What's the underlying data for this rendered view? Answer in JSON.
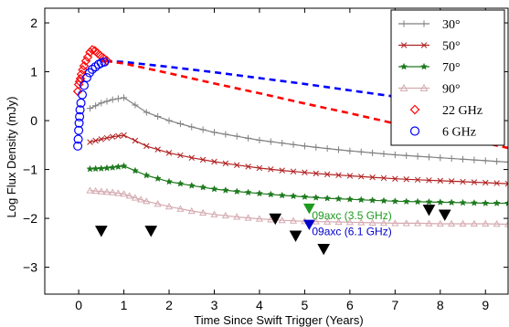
{
  "chart_data": {
    "type": "line",
    "title": "",
    "xlabel": "Time Since Swift Trigger (Years)",
    "ylabel": "Log Flux Density (mJy)",
    "xlim": [
      -0.75,
      9.5
    ],
    "ylim": [
      -3.55,
      2.3
    ],
    "xticks": [
      0,
      1,
      2,
      3,
      4,
      5,
      6,
      7,
      8,
      9
    ],
    "yticks": [
      -3,
      -2,
      -1,
      0,
      1,
      2
    ],
    "ytick_labels": [
      "−3",
      "−2",
      "−1",
      "0",
      "1",
      "2"
    ],
    "grid": false,
    "legend_position": "top-right",
    "series": [
      {
        "name": "30°",
        "color": "#808080",
        "marker": "plus",
        "line": "solid",
        "x": [
          0.25,
          0.5,
          0.75,
          1.0,
          1.5,
          2.0,
          2.5,
          3.0,
          3.5,
          4.0,
          4.5,
          5.0,
          5.5,
          6.0,
          6.5,
          7.0,
          7.5,
          8.0,
          8.5,
          9.0,
          9.5
        ],
        "y": [
          0.25,
          0.36,
          0.43,
          0.47,
          0.17,
          0.0,
          -0.13,
          -0.24,
          -0.32,
          -0.4,
          -0.46,
          -0.52,
          -0.57,
          -0.62,
          -0.66,
          -0.7,
          -0.73,
          -0.76,
          -0.79,
          -0.82,
          -0.85
        ]
      },
      {
        "name": "50°",
        "color": "#b22222",
        "marker": "x",
        "line": "solid",
        "x": [
          0.25,
          0.5,
          0.75,
          1.0,
          1.5,
          2.0,
          2.5,
          3.0,
          3.5,
          4.0,
          4.5,
          5.0,
          5.5,
          6.0,
          6.5,
          7.0,
          7.5,
          8.0,
          8.5,
          9.0,
          9.5
        ],
        "y": [
          -0.44,
          -0.38,
          -0.33,
          -0.3,
          -0.52,
          -0.66,
          -0.76,
          -0.84,
          -0.91,
          -0.97,
          -1.02,
          -1.06,
          -1.1,
          -1.13,
          -1.16,
          -1.19,
          -1.21,
          -1.23,
          -1.25,
          -1.27,
          -1.29
        ]
      },
      {
        "name": "70°",
        "color": "#1e7a1e",
        "marker": "star",
        "line": "solid",
        "x": [
          0.25,
          0.5,
          0.75,
          1.0,
          1.5,
          2.0,
          2.5,
          3.0,
          3.5,
          4.0,
          4.5,
          5.0,
          5.5,
          6.0,
          6.5,
          7.0,
          7.5,
          8.0,
          8.5,
          9.0,
          9.5
        ],
        "y": [
          -0.99,
          -0.98,
          -0.96,
          -0.93,
          -1.12,
          -1.25,
          -1.33,
          -1.4,
          -1.45,
          -1.49,
          -1.53,
          -1.56,
          -1.59,
          -1.61,
          -1.63,
          -1.65,
          -1.66,
          -1.67,
          -1.68,
          -1.69,
          -1.69
        ]
      },
      {
        "name": "90°",
        "color": "#d4aab0",
        "marker": "triangle",
        "line": "solid",
        "x": [
          0.25,
          0.5,
          0.75,
          1.0,
          1.25,
          1.5,
          2.0,
          2.5,
          3.0,
          3.5,
          4.0,
          4.5,
          5.0,
          5.5,
          6.0,
          6.5,
          7.0,
          7.5,
          8.0,
          8.5,
          9.0,
          9.5
        ],
        "y": [
          -1.43,
          -1.45,
          -1.47,
          -1.5,
          -1.58,
          -1.65,
          -1.76,
          -1.85,
          -1.92,
          -1.97,
          -2.01,
          -2.04,
          -2.06,
          -2.07,
          -2.08,
          -2.09,
          -2.1,
          -2.1,
          -2.11,
          -2.11,
          -2.11,
          -2.12
        ]
      },
      {
        "name": "22 GHz",
        "color": "#ff0000",
        "marker": "diamond",
        "line": "none",
        "x": [
          -0.02,
          0.0,
          0.02,
          0.04,
          0.06,
          0.09,
          0.12,
          0.16,
          0.2,
          0.25,
          0.3,
          0.36,
          0.42,
          0.48,
          0.55,
          0.62
        ],
        "y": [
          0.6,
          0.74,
          0.8,
          0.86,
          0.95,
          1.04,
          1.12,
          1.22,
          1.3,
          1.4,
          1.45,
          1.43,
          1.38,
          1.33,
          1.28,
          1.23
        ]
      },
      {
        "name": "6 GHz",
        "color": "#0000ff",
        "marker": "circle",
        "line": "none",
        "x": [
          -0.02,
          -0.01,
          0.0,
          0.01,
          0.02,
          0.03,
          0.05,
          0.08,
          0.12,
          0.18,
          0.24,
          0.3,
          0.37,
          0.44,
          0.5,
          0.57
        ],
        "y": [
          -0.52,
          -0.38,
          -0.2,
          -0.05,
          0.08,
          0.22,
          0.36,
          0.53,
          0.72,
          0.88,
          0.98,
          1.05,
          1.1,
          1.15,
          1.18,
          1.2
        ]
      }
    ],
    "model_curves": [
      {
        "color": "#0000ff",
        "dash": true,
        "x": [
          0.6,
          1.0,
          2.0,
          3.0,
          4.0,
          5.0,
          6.0,
          7.0,
          8.0,
          9.0,
          9.5
        ],
        "y": [
          1.22,
          1.2,
          1.1,
          0.99,
          0.87,
          0.75,
          0.62,
          0.49,
          0.37,
          0.25,
          0.19
        ]
      },
      {
        "color": "#ff0000",
        "dash": true,
        "x": [
          0.6,
          1.0,
          2.0,
          3.0,
          4.0,
          5.0,
          6.0,
          7.0,
          8.0,
          9.0,
          9.5
        ],
        "y": [
          1.22,
          1.17,
          0.97,
          0.76,
          0.56,
          0.35,
          0.15,
          -0.06,
          -0.26,
          -0.46,
          -0.56
        ]
      }
    ],
    "upper_limits": {
      "color": "#000000",
      "x": [
        0.5,
        1.6,
        4.35,
        4.8,
        5.42,
        7.75,
        8.1
      ],
      "y": [
        -2.25,
        -2.25,
        -2.0,
        -2.35,
        -2.62,
        -1.82,
        -1.92
      ]
    },
    "annotations": [
      {
        "text": "09axc (3.5 GHz)",
        "color": "#1e9a1e",
        "marker_color": "#1e9a1e",
        "x": 5.1,
        "y": -1.79
      },
      {
        "text": "09axc (6.1 GHz)",
        "color": "#0000cc",
        "marker_color": "#0000cc",
        "x": 5.1,
        "y": -2.12
      }
    ]
  }
}
